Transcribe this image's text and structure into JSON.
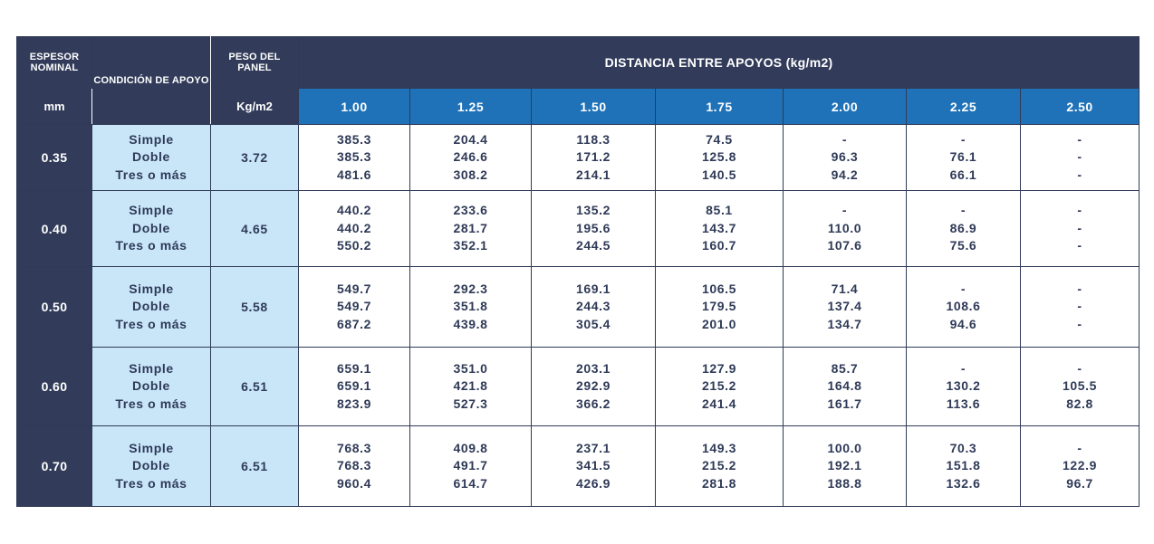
{
  "header": {
    "thickness_label": "ESPESOR NOMINAL",
    "thickness_unit": "mm",
    "support_label": "CONDICIÓN DE APOYO",
    "weight_label": "PESO DEL PANEL",
    "weight_unit": "Kg/m2",
    "distance_label": "DISTANCIA ENTRE APOYOS (kg/m2)",
    "distances": [
      "1.00",
      "1.25",
      "1.50",
      "1.75",
      "2.00",
      "2.25",
      "2.50"
    ]
  },
  "rows": [
    {
      "thickness": "0.35",
      "conditions": [
        "Simple",
        "Doble",
        "Tres o más"
      ],
      "weight": "3.72",
      "cols": [
        [
          "385.3",
          "385.3",
          "481.6"
        ],
        [
          "204.4",
          "246.6",
          "308.2"
        ],
        [
          "118.3",
          "171.2",
          "214.1"
        ],
        [
          "74.5",
          "125.8",
          "140.5"
        ],
        [
          "-",
          "96.3",
          "94.2"
        ],
        [
          "-",
          "76.1",
          "66.1"
        ],
        [
          "-",
          "-",
          "-"
        ]
      ]
    },
    {
      "thickness": "0.40",
      "conditions": [
        "Simple",
        "Doble",
        "Tres o más"
      ],
      "weight": "4.65",
      "cols": [
        [
          "440.2",
          "440.2",
          "550.2"
        ],
        [
          "233.6",
          "281.7",
          "352.1"
        ],
        [
          "135.2",
          "195.6",
          "244.5"
        ],
        [
          "85.1",
          "143.7",
          "160.7"
        ],
        [
          "-",
          "110.0",
          "107.6"
        ],
        [
          "-",
          "86.9",
          "75.6"
        ],
        [
          "-",
          "-",
          "-"
        ]
      ]
    },
    {
      "thickness": "0.50",
      "conditions": [
        "Simple",
        "Doble",
        "Tres o más"
      ],
      "weight": "5.58",
      "cols": [
        [
          "549.7",
          "549.7",
          "687.2"
        ],
        [
          "292.3",
          "351.8",
          "439.8"
        ],
        [
          "169.1",
          "244.3",
          "305.4"
        ],
        [
          "106.5",
          "179.5",
          "201.0"
        ],
        [
          "71.4",
          "137.4",
          "134.7"
        ],
        [
          "-",
          "108.6",
          "94.6"
        ],
        [
          "-",
          "-",
          "-"
        ]
      ]
    },
    {
      "thickness": "0.60",
      "conditions": [
        "Simple",
        "Doble",
        "Tres o más"
      ],
      "weight": "6.51",
      "cols": [
        [
          "659.1",
          "659.1",
          "823.9"
        ],
        [
          "351.0",
          "421.8",
          "527.3"
        ],
        [
          "203.1",
          "292.9",
          "366.2"
        ],
        [
          "127.9",
          "215.2",
          "241.4"
        ],
        [
          "85.7",
          "164.8",
          "161.7"
        ],
        [
          "-",
          "130.2",
          "113.6"
        ],
        [
          "-",
          "105.5",
          "82.8"
        ]
      ]
    },
    {
      "thickness": "0.70",
      "conditions": [
        "Simple",
        "Doble",
        "Tres o más"
      ],
      "weight": "6.51",
      "cols": [
        [
          "768.3",
          "768.3",
          "960.4"
        ],
        [
          "409.8",
          "491.7",
          "614.7"
        ],
        [
          "237.1",
          "341.5",
          "426.9"
        ],
        [
          "149.3",
          "215.2",
          "281.8"
        ],
        [
          "100.0",
          "192.1",
          "188.8"
        ],
        [
          "70.3",
          "151.8",
          "132.6"
        ],
        [
          "-",
          "122.9",
          "96.7"
        ]
      ]
    }
  ],
  "colors": {
    "header_dark": "#323c5a",
    "header_blue": "#1f72b8",
    "condition_bg": "#c9e6f9",
    "text_dark": "#2f3a57"
  }
}
